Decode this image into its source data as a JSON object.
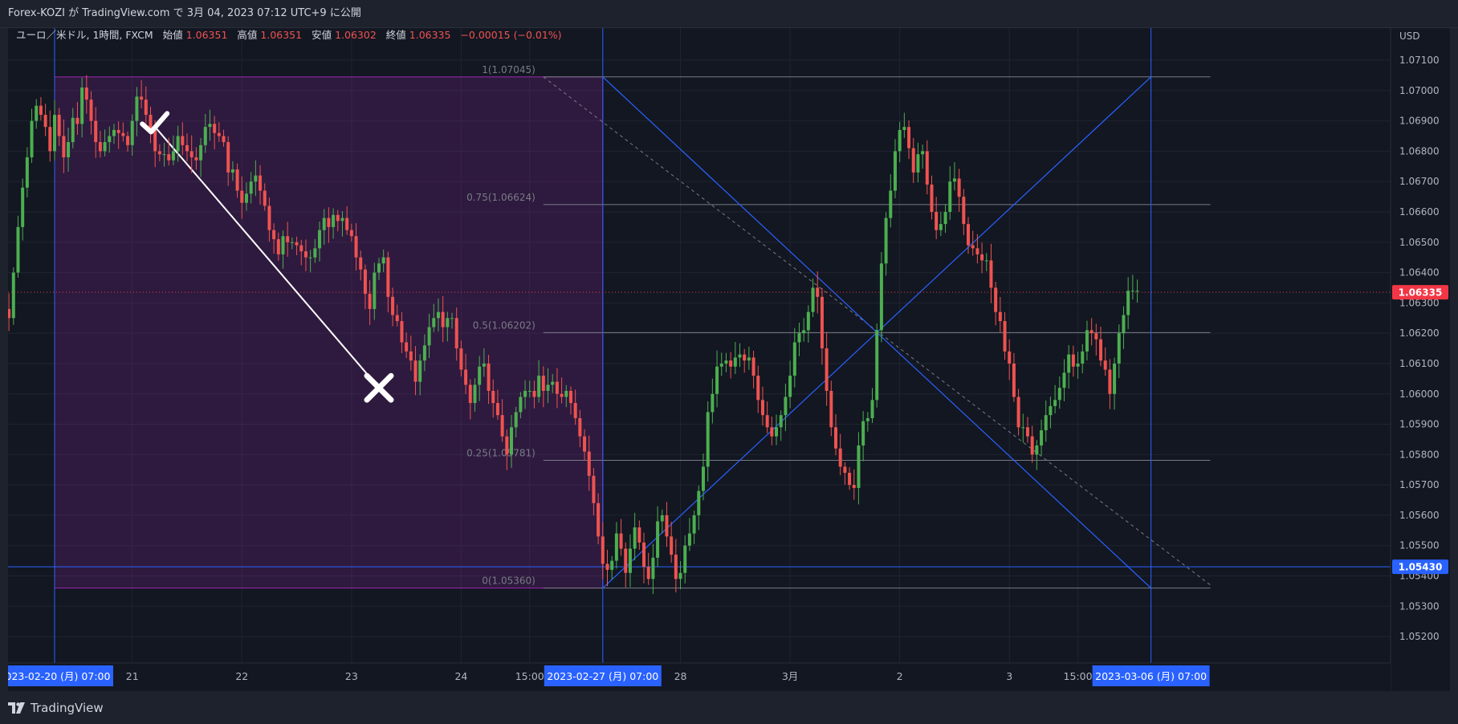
{
  "header": {
    "title": "Forex-KOZI が TradingView.com で 3月 04, 2023 07:12 UTC+9 に公開"
  },
  "footer": {
    "brand": "TradingView"
  },
  "legend": {
    "symbol": "ユーロ／米ドル, 1時間, FXCM",
    "open_label": "始値",
    "open": "1.06351",
    "high_label": "高値",
    "high": "1.06351",
    "low_label": "安値",
    "low": "1.06302",
    "close_label": "終値",
    "close": "1.06335",
    "change": "−0.00015 (−0.01%)"
  },
  "colors": {
    "up": "#4caf50",
    "down": "#ef5350",
    "background": "#131722",
    "range_fill": "#9c27b0",
    "fib_line": "#787b86",
    "blue_line": "#2962ff",
    "price_tag": "#f23645",
    "axis_tag": "#2962ff"
  },
  "icons": [
    "checkmark-icon",
    "cross-icon",
    "tradingview-logo-icon"
  ],
  "chart_data": {
    "type": "candlestick",
    "title": "ユーロ／米ドル, 1時間, FXCM",
    "ylabel": "USD",
    "ylim": [
      1.0515,
      1.0719
    ],
    "y_ticks": [
      "1.07100",
      "1.07000",
      "1.06900",
      "1.06800",
      "1.06700",
      "1.06600",
      "1.06500",
      "1.06400",
      "1.06300",
      "1.06200",
      "1.06100",
      "1.06000",
      "1.05900",
      "1.05800",
      "1.05700",
      "1.05600",
      "1.05500",
      "1.05400",
      "1.05300",
      "1.05200"
    ],
    "x_ticks": [
      {
        "i": 0,
        "label": "2023-02-20 (月)  07:00",
        "highlight": true
      },
      {
        "i": 17,
        "label": "21"
      },
      {
        "i": 41,
        "label": "22"
      },
      {
        "i": 65,
        "label": "23"
      },
      {
        "i": 89,
        "label": "24"
      },
      {
        "i": 104,
        "label": "15:00"
      },
      {
        "i": 120,
        "label": "2023-02-27 (月)  07:00",
        "highlight": true
      },
      {
        "i": 137,
        "label": "28"
      },
      {
        "i": 161,
        "label": "3月"
      },
      {
        "i": 185,
        "label": "2"
      },
      {
        "i": 209,
        "label": "3"
      },
      {
        "i": 224,
        "label": "15:00"
      },
      {
        "i": 240,
        "label": "2023-03-06 (月)  07:00",
        "highlight": true
      }
    ],
    "last_price": "1.06335",
    "hline_price": "1.05430",
    "fib_levels": [
      {
        "label": "1(1.07045)",
        "value": 1.07045
      },
      {
        "label": "0.75(1.06624)",
        "value": 1.06624
      },
      {
        "label": "0.5(1.06202)",
        "value": 1.06202
      },
      {
        "label": "0.25(1.05781)",
        "value": 1.05781
      },
      {
        "label": "0(1.05360)",
        "value": 1.0536
      }
    ],
    "range_box": {
      "x_from": 0,
      "x_to": 120,
      "y_from": 1.0536,
      "y_to": 1.07045
    },
    "trend_line": {
      "x1": 22,
      "y1": 1.0688,
      "x2": 71,
      "y2": 1.0602
    },
    "dashed_line": {
      "x1": 107,
      "y1": 1.07045,
      "x2": 253,
      "y2": 1.0537
    },
    "marker_check": {
      "x": 22,
      "y": 1.0689
    },
    "marker_cross": {
      "x": 71,
      "y": 1.0602
    },
    "blue_lines": [
      {
        "x1": 120,
        "y1": 1.07045,
        "x2": 240,
        "y2": 1.0536
      },
      {
        "x1": 120,
        "y1": 1.0536,
        "x2": 240,
        "y2": 1.07045
      }
    ],
    "vlines": [
      0,
      120,
      240
    ],
    "candles": {
      "t0": -10,
      "start": 1.0628,
      "close": [
        1.0625,
        1.064,
        1.0655,
        1.0668,
        1.0678,
        1.069,
        1.0695,
        1.0692,
        1.0688,
        1.068,
        1.0692,
        1.0685,
        1.0678,
        1.0683,
        1.0691,
        1.0689,
        1.0701,
        1.0697,
        1.069,
        1.0683,
        1.068,
        1.0683,
        1.0685,
        1.0687,
        1.0686,
        1.0685,
        1.0682,
        1.069,
        1.0698,
        1.0697,
        1.0692,
        1.0687,
        1.068,
        1.0679,
        1.0679,
        1.0677,
        1.068,
        1.0685,
        1.0682,
        1.068,
        1.0678,
        1.0677,
        1.0682,
        1.0688,
        1.0689,
        1.0686,
        1.0685,
        1.0683,
        1.0673,
        1.0674,
        1.0667,
        1.0663,
        1.0666,
        1.067,
        1.0672,
        1.0667,
        1.0662,
        1.0654,
        1.0651,
        1.0646,
        1.0652,
        1.065,
        1.065,
        1.0649,
        1.0647,
        1.0645,
        1.0645,
        1.0648,
        1.0654,
        1.0658,
        1.0655,
        1.0659,
        1.0657,
        1.0658,
        1.0654,
        1.0652,
        1.0645,
        1.0641,
        1.0633,
        1.0628,
        1.064,
        1.0643,
        1.0645,
        1.0632,
        1.0626,
        1.0624,
        1.0617,
        1.0614,
        1.0611,
        1.0604,
        1.0611,
        1.0616,
        1.0622,
        1.0625,
        1.0627,
        1.0622,
        1.0625,
        1.0625,
        1.0615,
        1.0608,
        1.0603,
        1.0597,
        1.0603,
        1.0609,
        1.061,
        1.0601,
        1.0597,
        1.0593,
        1.0586,
        1.058,
        1.0589,
        1.0594,
        1.0599,
        1.0601,
        1.0601,
        1.0599,
        1.0606,
        1.0601,
        1.0603,
        1.0604,
        1.06,
        1.0599,
        1.0601,
        1.0597,
        1.0592,
        1.0586,
        1.0581,
        1.0573,
        1.0564,
        1.0553,
        1.0544,
        1.0542,
        1.0545,
        1.0554,
        1.0549,
        1.0541,
        1.0549,
        1.0556,
        1.0551,
        1.0543,
        1.0539,
        1.0546,
        1.0558,
        1.056,
        1.0553,
        1.0547,
        1.0539,
        1.0541,
        1.055,
        1.0554,
        1.056,
        1.0568,
        1.0576,
        1.0594,
        1.06,
        1.0609,
        1.061,
        1.0611,
        1.0609,
        1.0612,
        1.0613,
        1.0611,
        1.0612,
        1.0606,
        1.0598,
        1.0593,
        1.0589,
        1.0586,
        1.0589,
        1.0593,
        1.0599,
        1.0606,
        1.0617,
        1.062,
        1.0621,
        1.0627,
        1.0635,
        1.0632,
        1.0615,
        1.0601,
        1.0589,
        1.0582,
        1.0576,
        1.0574,
        1.057,
        1.0569,
        1.0583,
        1.0591,
        1.0592,
        1.0598,
        1.0621,
        1.0643,
        1.0658,
        1.0667,
        1.068,
        1.0687,
        1.0688,
        1.0681,
        1.0673,
        1.0679,
        1.068,
        1.0669,
        1.066,
        1.0654,
        1.0656,
        1.066,
        1.067,
        1.0671,
        1.0665,
        1.0656,
        1.0649,
        1.0648,
        1.0646,
        1.0644,
        1.0644,
        1.0635,
        1.0627,
        1.0624,
        1.0614,
        1.061,
        1.0599,
        1.0589,
        1.0589,
        1.0586,
        1.058,
        1.0583,
        1.0588,
        1.0593,
        1.0596,
        1.0598,
        1.0602,
        1.0607,
        1.0613,
        1.0609,
        1.061,
        1.0614,
        1.0621,
        1.062,
        1.0618,
        1.0611,
        1.0608,
        1.06,
        1.061,
        1.062,
        1.0626,
        1.0634,
        1.0634,
        1.0634
      ]
    }
  }
}
